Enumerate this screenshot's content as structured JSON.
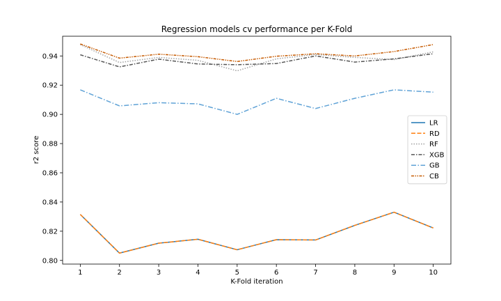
{
  "chart_data": {
    "type": "line",
    "title": "Regression models cv performance per K-Fold",
    "xlabel": "K-Fold iteration",
    "ylabel": "r2 score",
    "x": [
      1,
      2,
      3,
      4,
      5,
      6,
      7,
      8,
      9,
      10
    ],
    "xticks": [
      "1",
      "2",
      "3",
      "4",
      "5",
      "6",
      "7",
      "8",
      "9",
      "10"
    ],
    "yticks": [
      "0.80",
      "0.82",
      "0.84",
      "0.86",
      "0.88",
      "0.90",
      "0.92",
      "0.94"
    ],
    "ylim": [
      0.7975,
      0.9535
    ],
    "xlim": [
      0.55,
      10.45
    ],
    "grid": false,
    "legend_position": "right",
    "series": [
      {
        "name": "LR",
        "color": "#1f77b4",
        "dash": "",
        "width": 1.5,
        "values": [
          0.8315,
          0.805,
          0.8118,
          0.8145,
          0.8073,
          0.8142,
          0.814,
          0.824,
          0.833,
          0.8222
        ]
      },
      {
        "name": "RD",
        "color": "#ff7f0e",
        "dash": "6,2.5",
        "width": 1.5,
        "values": [
          0.8315,
          0.805,
          0.8118,
          0.8145,
          0.8073,
          0.8142,
          0.814,
          0.824,
          0.833,
          0.8222
        ]
      },
      {
        "name": "RF",
        "color": "#a0a0a0",
        "dash": "1.5,2",
        "width": 1.5,
        "values": [
          0.9478,
          0.9355,
          0.939,
          0.937,
          0.9298,
          0.938,
          0.941,
          0.939,
          0.9375,
          0.9428
        ]
      },
      {
        "name": "XGB",
        "color": "#555555",
        "dash": "5,2,1.5,2",
        "width": 1.5,
        "values": [
          0.9408,
          0.9325,
          0.9378,
          0.9345,
          0.934,
          0.9348,
          0.94,
          0.9358,
          0.938,
          0.9415
        ]
      },
      {
        "name": "GB",
        "color": "#5fa2d6",
        "dash": "7,2.5,1.5,2.5",
        "width": 1.5,
        "values": [
          0.9168,
          0.9058,
          0.908,
          0.9072,
          0.9,
          0.911,
          0.904,
          0.911,
          0.9168,
          0.9152
        ]
      },
      {
        "name": "CB",
        "color": "#c65a00",
        "dash": "4,1.5,1.5,1.5,1.5,1.5",
        "width": 1.5,
        "values": [
          0.9482,
          0.9385,
          0.9412,
          0.9395,
          0.9362,
          0.9398,
          0.9415,
          0.94,
          0.943,
          0.9478
        ]
      }
    ]
  }
}
